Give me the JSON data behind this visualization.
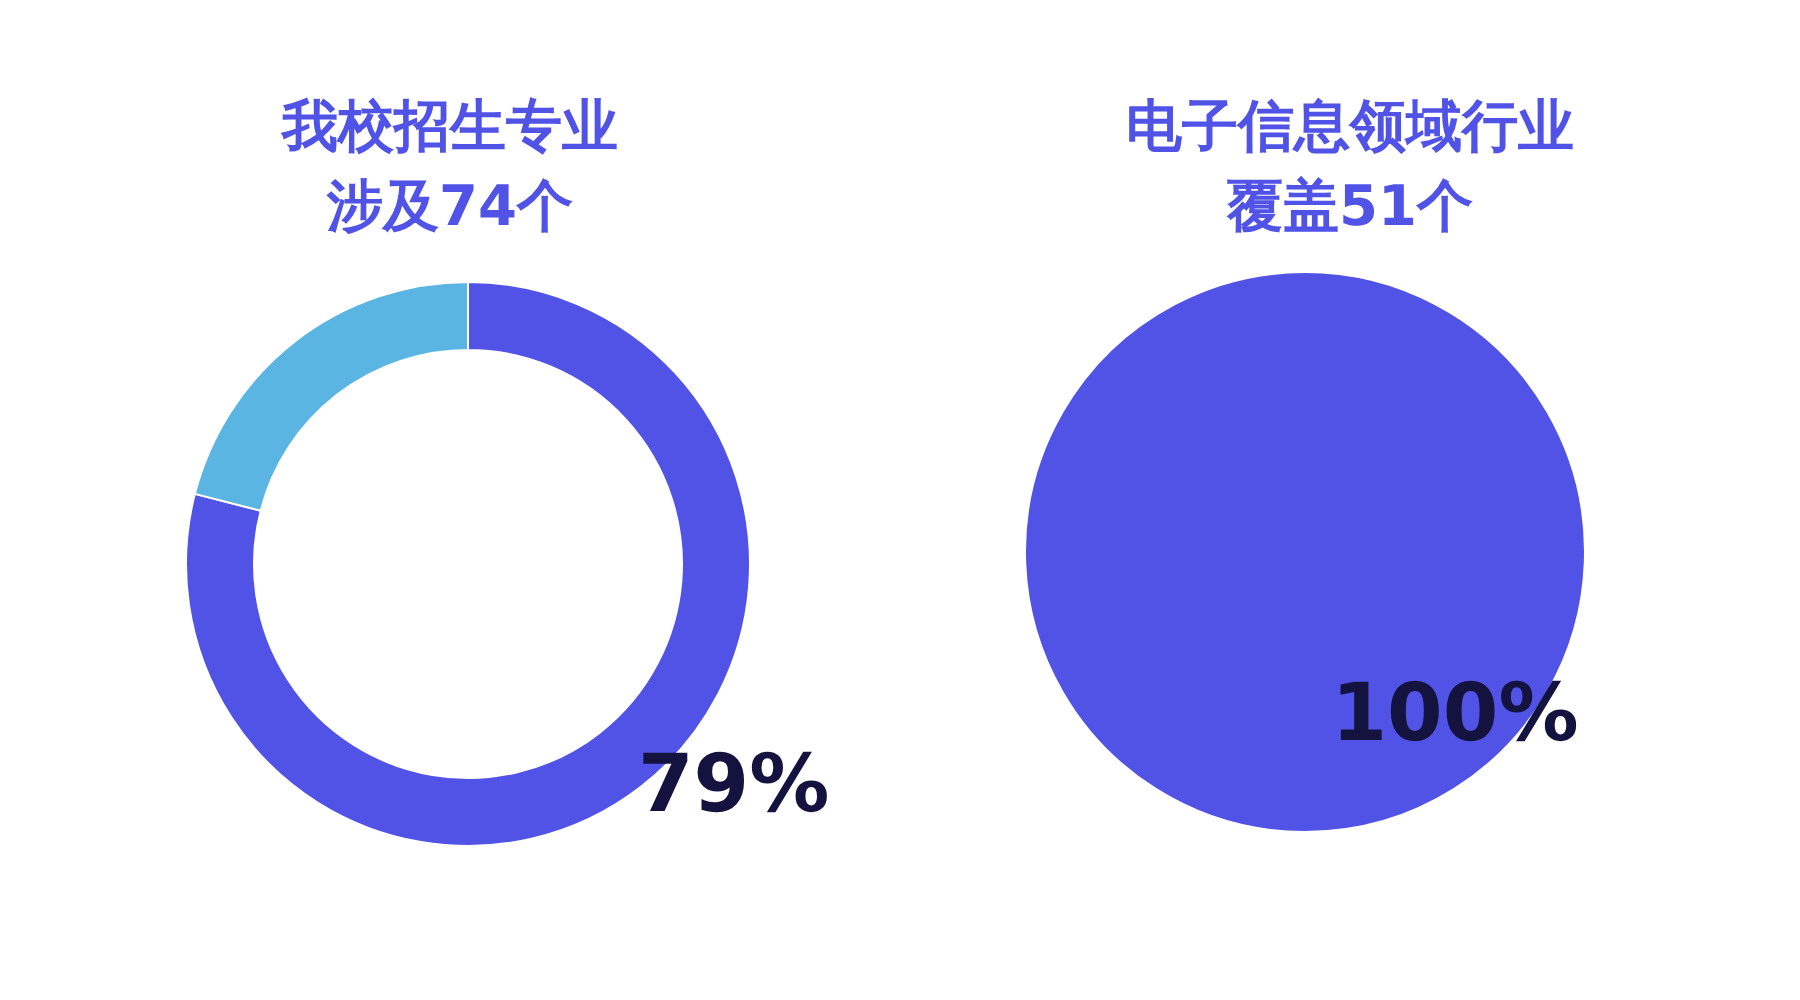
{
  "chart_data": [
    {
      "type": "donut",
      "title": "我校招生专业涉及74个",
      "categories": [
        null,
        null
      ],
      "values": [
        79,
        21
      ],
      "colors": [
        "#5053e6",
        "#5ab5e3"
      ],
      "value_labels": [
        "79%",
        null
      ]
    },
    {
      "type": "pie",
      "title": "电子信息领域行业覆盖51个",
      "categories": [
        null
      ],
      "values": [
        100
      ],
      "colors": [
        "#5053e6"
      ],
      "value_labels": [
        "100%"
      ]
    }
  ]
}
